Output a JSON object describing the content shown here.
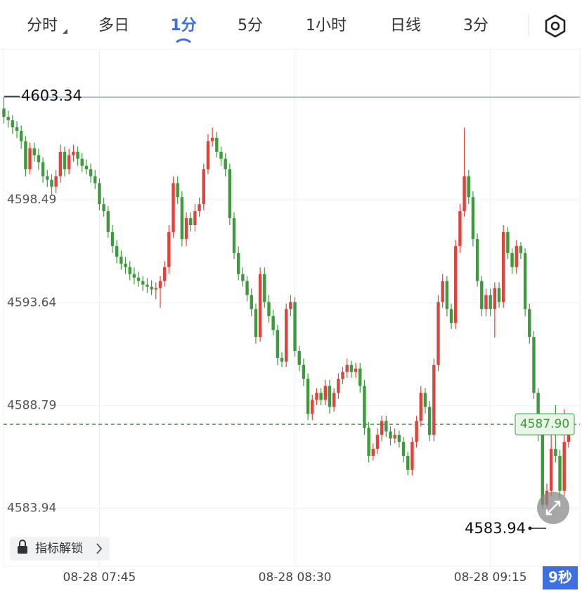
{
  "toolbar": {
    "tabs": [
      "分时",
      "多日",
      "1分",
      "5分",
      "1小时",
      "日线",
      "3分"
    ],
    "active": 2
  },
  "unlock_button": "指标解锁",
  "countdown": "9秒",
  "chart_data": {
    "type": "candlestick",
    "up_color": "#e0433a",
    "down_color": "#3d9a3d",
    "grid": true,
    "ylim": [
      4581.2,
      4605.6
    ],
    "yticks": [
      4598.49,
      4593.64,
      4588.79,
      4583.94
    ],
    "high_marker": 4603.34,
    "low_marker": 4583.94,
    "last_price": {
      "value": 4587.9,
      "label": "4587.90"
    },
    "categories": [
      null,
      null,
      null,
      null,
      null,
      null,
      null,
      null,
      null,
      null,
      null,
      null,
      null,
      null,
      null,
      null,
      null,
      null,
      null,
      null,
      null,
      null,
      "08-28 07:45",
      null,
      null,
      null,
      null,
      null,
      null,
      null,
      null,
      null,
      null,
      null,
      null,
      null,
      null,
      null,
      null,
      null,
      null,
      null,
      null,
      null,
      null,
      null,
      null,
      null,
      null,
      null,
      null,
      null,
      null,
      null,
      null,
      null,
      null,
      null,
      null,
      null,
      null,
      null,
      null,
      null,
      null,
      null,
      null,
      "08-28 08:30",
      null,
      null,
      null,
      null,
      null,
      null,
      null,
      null,
      null,
      null,
      null,
      null,
      null,
      null,
      null,
      null,
      null,
      null,
      null,
      null,
      null,
      null,
      null,
      null,
      null,
      null,
      null,
      null,
      null,
      null,
      null,
      null,
      null,
      null,
      null,
      null,
      null,
      null,
      null,
      null,
      null,
      null,
      null,
      null,
      "08-28 09:15",
      null,
      null,
      null,
      null,
      null,
      null,
      null,
      null,
      null,
      null,
      null,
      null,
      null,
      null,
      null,
      null,
      null,
      null
    ],
    "ohlc": [
      [
        4602.8,
        4603.34,
        4602.1,
        4602.41
      ],
      [
        4602.41,
        4602.7,
        4601.9,
        4602.25
      ],
      [
        4602.25,
        4602.5,
        4601.6,
        4601.92
      ],
      [
        4601.92,
        4602.2,
        4601.4,
        4601.75
      ],
      [
        4601.75,
        4602.0,
        4600.9,
        4601.26
      ],
      [
        4601.26,
        4601.5,
        4599.6,
        4599.94
      ],
      [
        4599.94,
        4601.2,
        4599.7,
        4600.93
      ],
      [
        4600.93,
        4601.2,
        4600.3,
        4600.6
      ],
      [
        4600.6,
        4600.9,
        4599.9,
        4600.27
      ],
      [
        4600.27,
        4600.5,
        4599.3,
        4599.61
      ],
      [
        4599.61,
        4599.9,
        4599.1,
        4599.44
      ],
      [
        4599.44,
        4599.7,
        4598.7,
        4599.11
      ],
      [
        4599.11,
        4599.9,
        4598.8,
        4599.61
      ],
      [
        4599.61,
        4601.1,
        4599.3,
        4600.76
      ],
      [
        4600.76,
        4601.0,
        4599.6,
        4599.94
      ],
      [
        4599.94,
        4600.9,
        4599.7,
        4600.6
      ],
      [
        4600.6,
        4601.1,
        4600.3,
        4600.76
      ],
      [
        4600.76,
        4601.0,
        4600.1,
        4600.43
      ],
      [
        4600.43,
        4600.7,
        4599.8,
        4600.1
      ],
      [
        4600.1,
        4600.4,
        4599.7,
        4599.94
      ],
      [
        4599.94,
        4600.2,
        4599.3,
        4599.61
      ],
      [
        4599.61,
        4599.9,
        4599.0,
        4599.28
      ],
      [
        4599.28,
        4599.5,
        4598.0,
        4598.29
      ],
      [
        4598.29,
        4598.6,
        4597.7,
        4597.96
      ],
      [
        4597.96,
        4598.2,
        4596.7,
        4596.97
      ],
      [
        4596.97,
        4597.3,
        4596.0,
        4596.31
      ],
      [
        4596.31,
        4596.6,
        4595.5,
        4595.81
      ],
      [
        4595.81,
        4596.1,
        4595.2,
        4595.48
      ],
      [
        4595.48,
        4595.8,
        4595.0,
        4595.32
      ],
      [
        4595.32,
        4595.6,
        4594.7,
        4594.99
      ],
      [
        4594.99,
        4595.3,
        4594.5,
        4594.82
      ],
      [
        4594.82,
        4595.1,
        4594.4,
        4594.66
      ],
      [
        4594.66,
        4594.9,
        4594.2,
        4594.49
      ],
      [
        4594.49,
        4594.8,
        4594.1,
        4594.39
      ],
      [
        4594.39,
        4594.7,
        4594.0,
        4594.26
      ],
      [
        4594.26,
        4594.6,
        4593.8,
        4594.33
      ],
      [
        4594.33,
        4594.9,
        4593.4,
        4594.66
      ],
      [
        4594.66,
        4595.6,
        4594.4,
        4595.32
      ],
      [
        4595.32,
        4597.3,
        4595.0,
        4596.97
      ],
      [
        4596.97,
        4599.6,
        4596.7,
        4599.28
      ],
      [
        4599.28,
        4599.6,
        4598.3,
        4598.62
      ],
      [
        4598.62,
        4598.9,
        4596.3,
        4596.64
      ],
      [
        4596.64,
        4597.9,
        4596.3,
        4597.63
      ],
      [
        4597.63,
        4597.9,
        4597.0,
        4597.3
      ],
      [
        4597.3,
        4598.3,
        4597.0,
        4597.96
      ],
      [
        4597.96,
        4598.6,
        4597.7,
        4598.29
      ],
      [
        4598.29,
        4600.2,
        4598.0,
        4599.94
      ],
      [
        4599.94,
        4601.6,
        4599.7,
        4601.26
      ],
      [
        4601.26,
        4601.9,
        4601.0,
        4601.42
      ],
      [
        4601.42,
        4601.7,
        4600.5,
        4600.76
      ],
      [
        4600.76,
        4601.0,
        4600.1,
        4600.43
      ],
      [
        4600.43,
        4600.7,
        4599.6,
        4599.94
      ],
      [
        4599.94,
        4600.2,
        4597.3,
        4597.63
      ],
      [
        4597.63,
        4597.9,
        4595.7,
        4595.98
      ],
      [
        4595.98,
        4596.3,
        4594.7,
        4594.99
      ],
      [
        4594.99,
        4595.3,
        4594.4,
        4594.66
      ],
      [
        4594.66,
        4594.9,
        4593.7,
        4594.0
      ],
      [
        4594.0,
        4594.3,
        4593.0,
        4593.34
      ],
      [
        4593.34,
        4593.6,
        4591.7,
        4592.02
      ],
      [
        4592.02,
        4595.3,
        4591.8,
        4594.99
      ],
      [
        4594.99,
        4595.3,
        4593.4,
        4593.67
      ],
      [
        4593.67,
        4594.0,
        4592.7,
        4593.01
      ],
      [
        4593.01,
        4593.3,
        4592.1,
        4592.35
      ],
      [
        4592.35,
        4592.6,
        4590.7,
        4591.03
      ],
      [
        4591.03,
        4591.3,
        4590.6,
        4590.86
      ],
      [
        4590.86,
        4593.6,
        4590.6,
        4593.34
      ],
      [
        4593.34,
        4594.0,
        4593.0,
        4593.67
      ],
      [
        4593.67,
        4593.9,
        4591.1,
        4591.36
      ],
      [
        4591.36,
        4591.6,
        4590.4,
        4590.7
      ],
      [
        4590.7,
        4591.0,
        4589.7,
        4590.04
      ],
      [
        4590.04,
        4590.3,
        4588.1,
        4588.39
      ],
      [
        4588.39,
        4589.3,
        4588.1,
        4589.05
      ],
      [
        4589.05,
        4589.6,
        4588.8,
        4589.38
      ],
      [
        4589.38,
        4589.6,
        4588.8,
        4589.05
      ],
      [
        4589.05,
        4590.0,
        4588.8,
        4589.71
      ],
      [
        4589.71,
        4590.0,
        4588.4,
        4588.72
      ],
      [
        4588.72,
        4589.6,
        4588.5,
        4589.38
      ],
      [
        4589.38,
        4590.3,
        4589.1,
        4590.04
      ],
      [
        4590.04,
        4590.6,
        4589.8,
        4590.37
      ],
      [
        4590.37,
        4591.0,
        4590.1,
        4590.7
      ],
      [
        4590.7,
        4590.9,
        4590.1,
        4590.37
      ],
      [
        4590.37,
        4590.8,
        4590.1,
        4590.53
      ],
      [
        4590.53,
        4590.8,
        4589.4,
        4589.71
      ],
      [
        4589.71,
        4590.0,
        4587.4,
        4587.73
      ],
      [
        4587.73,
        4588.0,
        4586.1,
        4586.41
      ],
      [
        4586.41,
        4587.0,
        4586.2,
        4586.74
      ],
      [
        4586.74,
        4587.7,
        4586.5,
        4587.4
      ],
      [
        4587.4,
        4588.3,
        4587.1,
        4588.06
      ],
      [
        4588.06,
        4588.3,
        4587.3,
        4587.56
      ],
      [
        4587.56,
        4587.8,
        4586.9,
        4587.23
      ],
      [
        4587.23,
        4587.7,
        4587.0,
        4587.4
      ],
      [
        4587.4,
        4587.6,
        4586.8,
        4587.07
      ],
      [
        4587.07,
        4587.3,
        4586.1,
        4586.41
      ],
      [
        4586.41,
        4586.6,
        4585.5,
        4585.75
      ],
      [
        4585.75,
        4587.3,
        4585.5,
        4587.07
      ],
      [
        4587.07,
        4588.3,
        4586.8,
        4588.06
      ],
      [
        4588.06,
        4589.7,
        4587.8,
        4589.38
      ],
      [
        4589.38,
        4589.6,
        4588.4,
        4588.72
      ],
      [
        4588.72,
        4589.0,
        4587.1,
        4587.4
      ],
      [
        4587.4,
        4591.0,
        4587.1,
        4590.7
      ],
      [
        4590.7,
        4594.0,
        4590.4,
        4593.67
      ],
      [
        4593.67,
        4595.0,
        4593.4,
        4594.66
      ],
      [
        4594.66,
        4594.9,
        4593.0,
        4593.34
      ],
      [
        4593.34,
        4593.6,
        4592.4,
        4592.68
      ],
      [
        4592.68,
        4596.6,
        4592.4,
        4596.31
      ],
      [
        4596.31,
        4598.3,
        4596.0,
        4597.96
      ],
      [
        4597.96,
        4601.9,
        4597.7,
        4599.61
      ],
      [
        4599.61,
        4599.9,
        4598.3,
        4598.62
      ],
      [
        4598.62,
        4598.9,
        4596.3,
        4596.64
      ],
      [
        4596.64,
        4596.9,
        4594.4,
        4594.66
      ],
      [
        4594.66,
        4594.9,
        4593.0,
        4593.34
      ],
      [
        4593.34,
        4594.3,
        4593.0,
        4594.0
      ],
      [
        4594.0,
        4594.3,
        4593.0,
        4593.34
      ],
      [
        4593.34,
        4594.6,
        4592.0,
        4594.33
      ],
      [
        4594.33,
        4594.6,
        4593.4,
        4593.67
      ],
      [
        4593.67,
        4597.3,
        4593.4,
        4596.97
      ],
      [
        4596.97,
        4597.2,
        4595.7,
        4595.98
      ],
      [
        4595.98,
        4596.2,
        4595.0,
        4595.32
      ],
      [
        4595.32,
        4596.6,
        4595.0,
        4596.31
      ],
      [
        4596.31,
        4596.5,
        4595.7,
        4595.98
      ],
      [
        4595.98,
        4596.2,
        4593.0,
        4593.34
      ],
      [
        4593.34,
        4593.6,
        4591.7,
        4592.02
      ],
      [
        4592.02,
        4592.3,
        4589.1,
        4589.38
      ],
      [
        4589.38,
        4589.6,
        4587.1,
        4587.4
      ],
      [
        4587.4,
        4587.7,
        4583.94,
        4584.1
      ],
      [
        4584.1,
        4585.1,
        4584.0,
        4584.76
      ],
      [
        4584.76,
        4587.4,
        4584.5,
        4586.74
      ],
      [
        4586.74,
        4588.8,
        4586.1,
        4586.41
      ],
      [
        4586.41,
        4586.7,
        4584.4,
        4584.76
      ],
      [
        4584.76,
        4588.6,
        4584.5,
        4587.07
      ],
      [
        4587.07,
        4588.1,
        4586.8,
        4587.9
      ]
    ]
  }
}
